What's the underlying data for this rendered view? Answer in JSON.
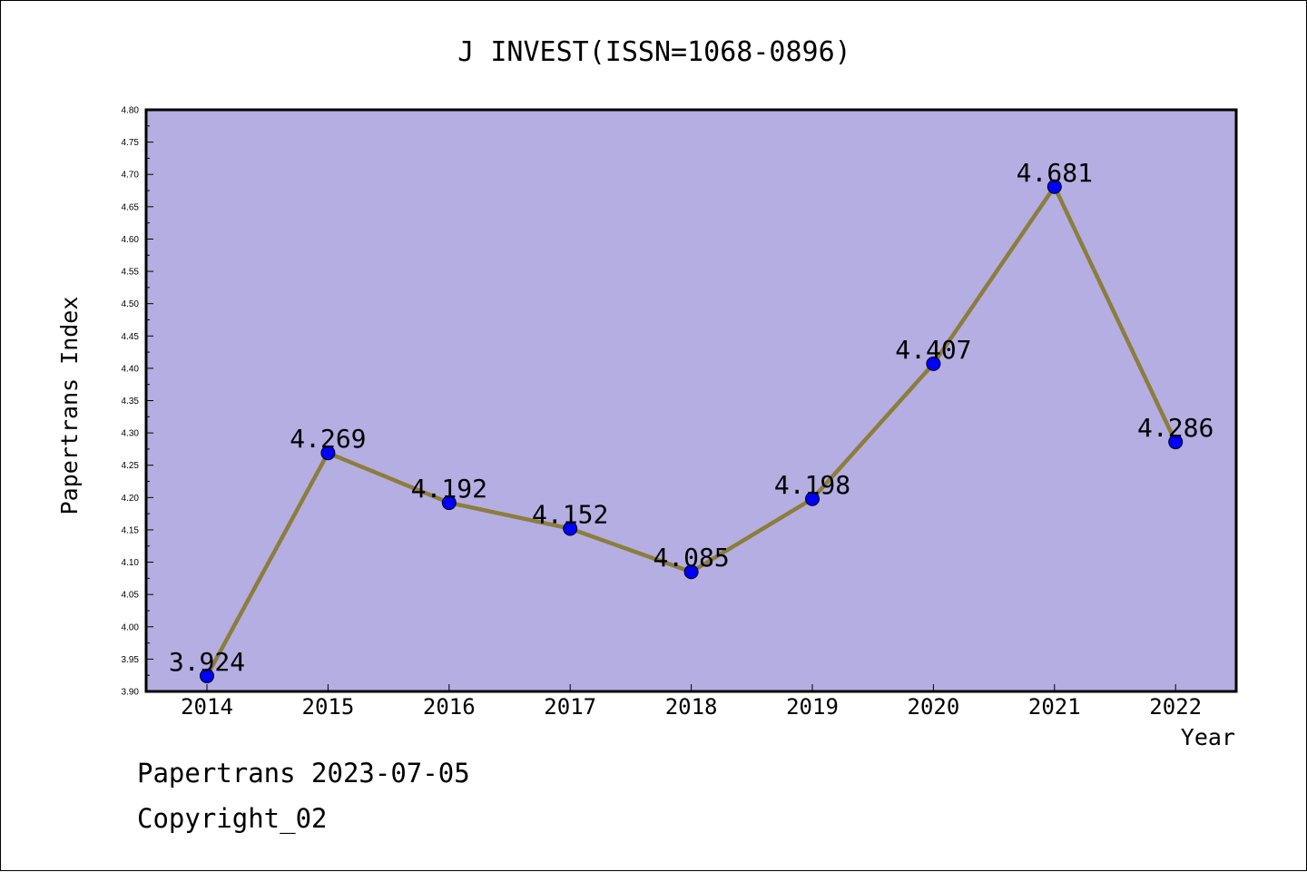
{
  "chart_data": {
    "type": "line",
    "title": "J INVEST(ISSN=1068-0896)",
    "xlabel": "Year",
    "ylabel": "Papertrans Index",
    "categories": [
      "2014",
      "2015",
      "2016",
      "2017",
      "2018",
      "2019",
      "2020",
      "2021",
      "2022"
    ],
    "values": [
      3.924,
      4.269,
      4.192,
      4.152,
      4.085,
      4.198,
      4.407,
      4.681,
      4.286
    ],
    "data_labels": [
      "3.924",
      "4.269",
      "4.192",
      "4.152",
      "4.085",
      "4.198",
      "4.407",
      "4.681",
      "4.286"
    ],
    "ylim": [
      3.9,
      4.8
    ],
    "yticks": [
      "3.90",
      "3.95",
      "4.00",
      "4.05",
      "4.10",
      "4.15",
      "4.20",
      "4.25",
      "4.30",
      "4.35",
      "4.40",
      "4.45",
      "4.50",
      "4.55",
      "4.60",
      "4.65",
      "4.70",
      "4.75",
      "4.80"
    ],
    "grid": false,
    "legend": "none",
    "colors": {
      "plot_background": "#b4aee2",
      "line": "#8c7d3c",
      "marker": "#0000ff"
    }
  },
  "footer": {
    "source": "Papertrans 2023-07-05",
    "copyright": "Copyright_02"
  }
}
